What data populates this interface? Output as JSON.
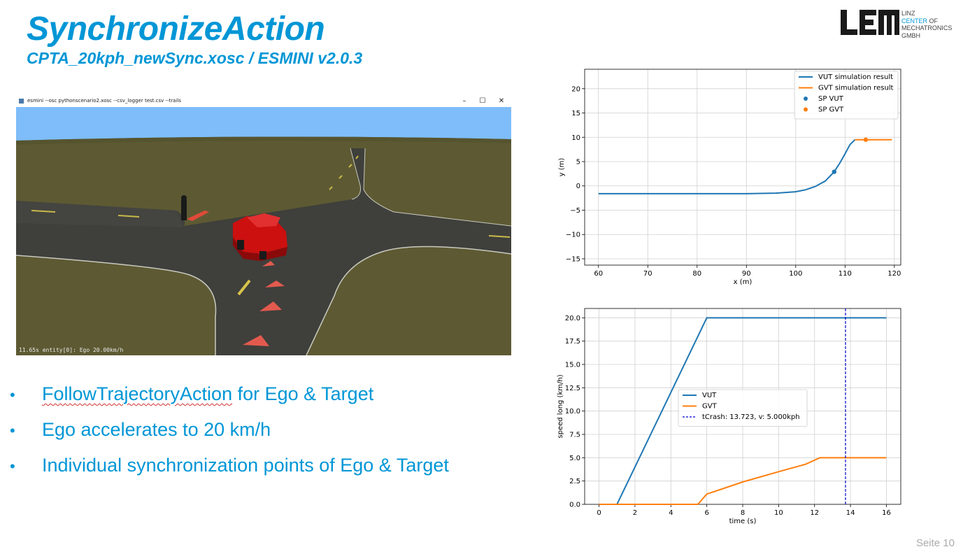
{
  "slide": {
    "title": "SynchronizeAction",
    "subtitle": "CPTA_20kph_newSync.xosc / ESMINI v2.0.3",
    "page_number": "Seite 10"
  },
  "logo": {
    "lines": [
      "LINZ",
      "CENTER",
      "OF",
      "MECHATRONICS",
      "GMBH"
    ]
  },
  "esmini_window": {
    "title": "esmini --osc pythonscenario2.xosc --csv_logger test.csv --trails",
    "minimize_icon": "minimize-icon",
    "maximize_icon": "maximize-icon",
    "close_icon": "close-icon",
    "overlay_text": "11.65s entity[0]: Ego 20.00km/h"
  },
  "bullets": [
    {
      "link_text": "FollowTrajectoryAction",
      "rest": " for Ego & Target"
    },
    {
      "link_text": "",
      "rest": "Ego accelerates to 20 km/h"
    },
    {
      "link_text": "",
      "rest": "Individual synchronization points of Ego & Target"
    }
  ],
  "chart_data": [
    {
      "type": "line",
      "xlabel": "x (m)",
      "ylabel": "y (m)",
      "xlim": [
        57.2,
        121.3
      ],
      "ylim": [
        -16.3,
        24.0
      ],
      "xticks": [
        60,
        70,
        80,
        90,
        100,
        110,
        120
      ],
      "yticks": [
        -15,
        -10,
        -5,
        0,
        5,
        10,
        15,
        20
      ],
      "grid": true,
      "legend_position": "top-right",
      "series": [
        {
          "name": "VUT simulation result",
          "color": "#1f77b4",
          "kind": "line",
          "x": [
            60,
            70,
            80,
            90,
            96,
            100,
            102,
            104,
            106,
            107.8,
            109,
            110,
            111,
            112
          ],
          "y": [
            -1.6,
            -1.6,
            -1.6,
            -1.6,
            -1.5,
            -1.2,
            -0.8,
            -0.1,
            1.0,
            2.9,
            4.8,
            6.6,
            8.5,
            9.5
          ]
        },
        {
          "name": "GVT simulation result",
          "color": "#ff7f0e",
          "kind": "line",
          "x": [
            112,
            119.5
          ],
          "y": [
            9.5,
            9.5
          ]
        },
        {
          "name": "SP VUT",
          "color": "#1f77b4",
          "kind": "point",
          "x": [
            107.8
          ],
          "y": [
            2.9
          ]
        },
        {
          "name": "SP GVT",
          "color": "#ff7f0e",
          "kind": "point",
          "x": [
            114.2
          ],
          "y": [
            9.5
          ]
        }
      ]
    },
    {
      "type": "line",
      "xlabel": "time (s)",
      "ylabel": "speed long (km/h)",
      "xlim": [
        -0.8,
        16.8
      ],
      "ylim": [
        0,
        21.0
      ],
      "xticks": [
        0,
        2,
        4,
        6,
        8,
        10,
        12,
        14,
        16
      ],
      "yticks": [
        0.0,
        2.5,
        5.0,
        7.5,
        10.0,
        12.5,
        15.0,
        17.5,
        20.0
      ],
      "ytick_labels": [
        "0.0",
        "2.5",
        "5.0",
        "7.5",
        "10.0",
        "12.5",
        "15.0",
        "17.5",
        "20.0"
      ],
      "grid": true,
      "legend_position": "center-left",
      "series": [
        {
          "name": "VUT",
          "color": "#1f77b4",
          "kind": "line",
          "x": [
            0,
            1.0,
            6.0,
            16.0
          ],
          "y": [
            0,
            0,
            20.0,
            20.0
          ]
        },
        {
          "name": "GVT",
          "color": "#ff7f0e",
          "kind": "line",
          "x": [
            0,
            5.5,
            6.0,
            8.0,
            10.0,
            11.5,
            12.3,
            16.0
          ],
          "y": [
            0,
            0,
            1.1,
            2.4,
            3.5,
            4.3,
            5.0,
            5.0
          ]
        },
        {
          "name": "tCrash: 13.723, v: 5.000kph",
          "color": "#0000cc",
          "kind": "vline",
          "x": [
            13.723
          ]
        }
      ]
    }
  ]
}
